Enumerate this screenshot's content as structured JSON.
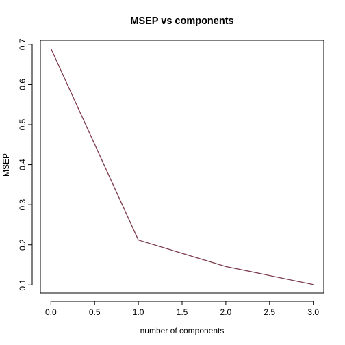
{
  "chart_data": {
    "type": "line",
    "title": "MSEP vs components",
    "xlabel": "number of components",
    "ylabel": "MSEP",
    "x": [
      0,
      1,
      2,
      3
    ],
    "series": [
      {
        "values": [
          0.69,
          0.212,
          0.146,
          0.101
        ],
        "color": "#7b3b4b"
      }
    ],
    "xlim": [
      -0.12,
      3.12
    ],
    "ylim": [
      0.08,
      0.71
    ],
    "xticks": [
      0.0,
      0.5,
      1.0,
      1.5,
      2.0,
      2.5,
      3.0
    ],
    "xtick_labels": [
      "0.0",
      "0.5",
      "1.0",
      "1.5",
      "2.0",
      "2.5",
      "3.0"
    ],
    "yticks": [
      0.1,
      0.2,
      0.3,
      0.4,
      0.5,
      0.6,
      0.7
    ],
    "ytick_labels": [
      "0.1",
      "0.2",
      "0.3",
      "0.4",
      "0.5",
      "0.6",
      "0.7"
    ],
    "grid": false,
    "legend": "none"
  }
}
